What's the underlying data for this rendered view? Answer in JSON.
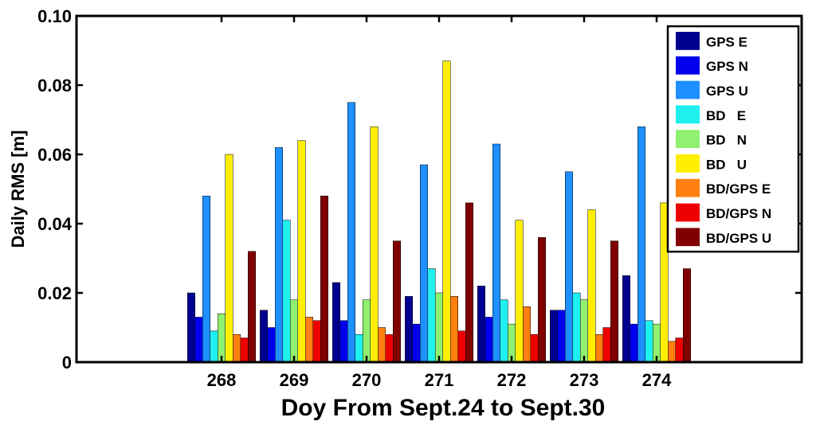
{
  "chart_data": {
    "type": "bar",
    "title": "",
    "xlabel": "Doy From Sept.24 to Sept.30",
    "ylabel": "Daily RMS [m]",
    "categories": [
      "268",
      "269",
      "270",
      "271",
      "272",
      "273",
      "274"
    ],
    "ylim": [
      0,
      0.1
    ],
    "xlim": [
      266,
      276
    ],
    "yticks": [
      "0",
      "0.02",
      "0.04",
      "0.06",
      "0.08",
      "0.10"
    ],
    "grid": false,
    "legend_position": "top-right",
    "series": [
      {
        "name": "GPS E",
        "color": "#000090",
        "values": [
          0.02,
          0.015,
          0.023,
          0.019,
          0.022,
          0.015,
          0.025
        ]
      },
      {
        "name": "GPS N",
        "color": "#0000ee",
        "values": [
          0.013,
          0.01,
          0.012,
          0.011,
          0.013,
          0.015,
          0.011
        ]
      },
      {
        "name": "GPS U",
        "color": "#1e90ff",
        "values": [
          0.048,
          0.062,
          0.075,
          0.057,
          0.063,
          0.055,
          0.068
        ]
      },
      {
        "name": "BD   E",
        "color": "#1ef0f0",
        "values": [
          0.009,
          0.041,
          0.008,
          0.027,
          0.018,
          0.02,
          0.012
        ]
      },
      {
        "name": "BD   N",
        "color": "#90f070",
        "values": [
          0.014,
          0.018,
          0.018,
          0.02,
          0.011,
          0.018,
          0.011
        ]
      },
      {
        "name": "BD   U",
        "color": "#ffee00",
        "values": [
          0.06,
          0.064,
          0.068,
          0.087,
          0.041,
          0.044,
          0.046
        ]
      },
      {
        "name": "BD/GPS E",
        "color": "#ff7f10",
        "values": [
          0.008,
          0.013,
          0.01,
          0.019,
          0.016,
          0.008,
          0.006
        ]
      },
      {
        "name": "BD/GPS N",
        "color": "#ee0000",
        "values": [
          0.007,
          0.012,
          0.008,
          0.009,
          0.008,
          0.01,
          0.007
        ]
      },
      {
        "name": "BD/GPS U",
        "color": "#800000",
        "values": [
          0.032,
          0.048,
          0.035,
          0.046,
          0.036,
          0.035,
          0.027
        ]
      }
    ]
  }
}
